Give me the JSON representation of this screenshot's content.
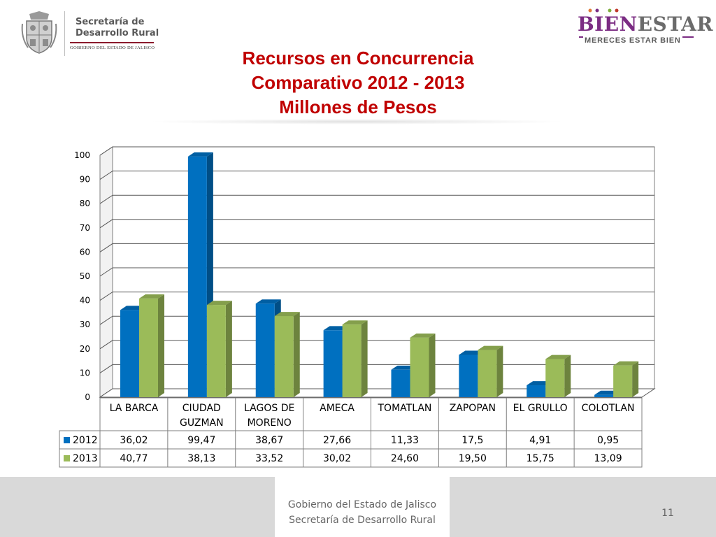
{
  "header": {
    "secretaria_line1": "Secretaría de",
    "secretaria_line2": "Desarrollo Rural",
    "gobierno": "GOBIERNO DEL ESTADO DE JALISCO",
    "bienestar_part1": "BIEN",
    "bienestar_part2": "ESTAR",
    "bienestar_tagline": "MERECES ESTAR BIEN"
  },
  "title": {
    "line1": "Recursos en Concurrencia",
    "line2": "Comparativo 2012 - 2013",
    "line3": "Millones de Pesos"
  },
  "colors": {
    "title": "#c00000",
    "series_2012": "#0070c0",
    "series_2013": "#9bbb59",
    "bienestar_purple": "#7b2c83",
    "gobierno_red": "#8b1a2c"
  },
  "chart_data": {
    "type": "bar",
    "style": "3d-clustered-column-with-data-table",
    "categories": [
      "LA BARCA",
      "CIUDAD GUZMAN",
      "LAGOS DE MORENO",
      "AMECA",
      "TOMATLAN",
      "ZAPOPAN",
      "EL GRULLO",
      "COLOTLAN"
    ],
    "series": [
      {
        "name": "2012",
        "values": [
          36.02,
          99.47,
          38.67,
          27.66,
          11.33,
          17.5,
          4.91,
          0.95
        ],
        "labels": [
          "36,02",
          "99,47",
          "38,67",
          "27,66",
          "11,33",
          "17,5",
          "4,91",
          "0,95"
        ]
      },
      {
        "name": "2013",
        "values": [
          40.77,
          38.13,
          33.52,
          30.02,
          24.6,
          19.5,
          15.75,
          13.09
        ],
        "labels": [
          "40,77",
          "38,13",
          "33,52",
          "30,02",
          "24,60",
          "19,50",
          "15,75",
          "13,09"
        ]
      }
    ],
    "yticks": [
      "0",
      "10",
      "20",
      "30",
      "40",
      "50",
      "60",
      "70",
      "80",
      "90",
      "100"
    ],
    "ylim": [
      0,
      100
    ],
    "grid": true,
    "legend": "data-table"
  },
  "footer": {
    "line1": "Gobierno del Estado de Jalisco",
    "line2": "Secretaría de Desarrollo Rural",
    "page_number": "11"
  }
}
